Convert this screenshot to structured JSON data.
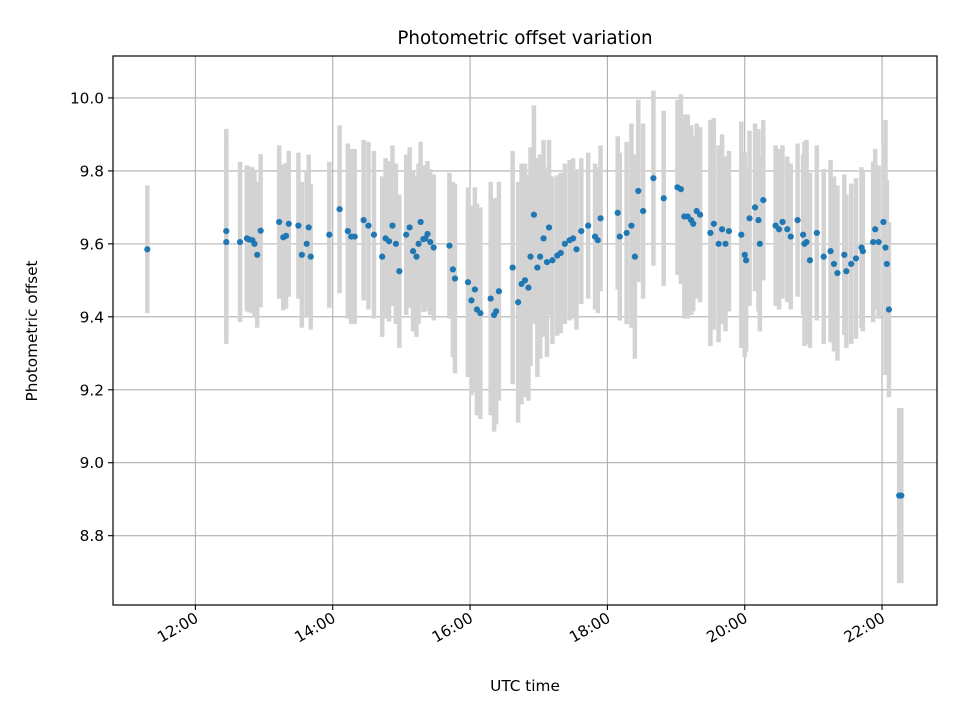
{
  "chart_data": {
    "type": "scatter",
    "title": "Photometric offset variation",
    "xlabel": "UTC time",
    "ylabel": "Photometric offset",
    "x_tick_labels": [
      "12:00",
      "14:00",
      "16:00",
      "18:00",
      "20:00",
      "22:00"
    ],
    "x_tick_hours": [
      12,
      14,
      16,
      18,
      20,
      22
    ],
    "y_tick_labels": [
      "8.8",
      "9.0",
      "9.2",
      "9.4",
      "9.6",
      "9.8",
      "10.0"
    ],
    "y_tick_values": [
      8.8,
      9.0,
      9.2,
      9.4,
      9.6,
      9.8,
      10.0
    ],
    "xlim_hours": [
      10.8,
      22.8
    ],
    "ylim": [
      8.61,
      10.115
    ],
    "grid": true,
    "colors": {
      "point": "#1f77b4",
      "errorbar": "#d3d3d3",
      "grid": "#b0b0b0"
    },
    "series": [
      {
        "x_hours": [
          11.3,
          12.45,
          12.45,
          12.65,
          12.75,
          12.78,
          12.83,
          12.86,
          12.9,
          12.95,
          13.22,
          13.28,
          13.32,
          13.36,
          13.5,
          13.55,
          13.62,
          13.65,
          13.68,
          13.95,
          14.1,
          14.22,
          14.27,
          14.32,
          14.45,
          14.52,
          14.6,
          14.72,
          14.77,
          14.82,
          14.87,
          14.92,
          14.97,
          15.07,
          15.12,
          15.17,
          15.22,
          15.25,
          15.28,
          15.32,
          15.35,
          15.38,
          15.42,
          15.47,
          15.7,
          15.75,
          15.78,
          15.97,
          16.02,
          16.07,
          16.1,
          16.15,
          16.3,
          16.35,
          16.38,
          16.42,
          16.62,
          16.7,
          16.75,
          16.8,
          16.85,
          16.88,
          16.93,
          16.98,
          17.02,
          17.07,
          17.12,
          17.15,
          17.2,
          17.27,
          17.32,
          17.38,
          17.45,
          17.5,
          17.55,
          17.62,
          17.72,
          17.82,
          17.86,
          17.9,
          18.15,
          18.18,
          18.28,
          18.35,
          18.4,
          18.45,
          18.52,
          18.67,
          18.82,
          19.02,
          19.07,
          19.12,
          19.17,
          19.22,
          19.25,
          19.3,
          19.35,
          19.5,
          19.55,
          19.62,
          19.67,
          19.72,
          19.77,
          19.95,
          20.0,
          20.02,
          20.07,
          20.15,
          20.2,
          20.22,
          20.27,
          20.45,
          20.5,
          20.55,
          20.62,
          20.67,
          20.77,
          20.85,
          20.87,
          20.9,
          20.95,
          21.05,
          21.15,
          21.25,
          21.3,
          21.35,
          21.45,
          21.48,
          21.55,
          21.62,
          21.7,
          21.72,
          21.87,
          21.9,
          21.95,
          22.02,
          22.05,
          22.07,
          22.1,
          22.25,
          22.28
        ],
        "y": [
          9.585,
          9.635,
          9.605,
          9.605,
          9.615,
          9.612,
          9.61,
          9.6,
          9.57,
          9.636,
          9.66,
          9.618,
          9.622,
          9.655,
          9.65,
          9.57,
          9.6,
          9.645,
          9.565,
          9.625,
          9.695,
          9.635,
          9.62,
          9.62,
          9.665,
          9.65,
          9.625,
          9.565,
          9.615,
          9.607,
          9.65,
          9.6,
          9.525,
          9.625,
          9.645,
          9.58,
          9.565,
          9.6,
          9.66,
          9.613,
          9.615,
          9.627,
          9.605,
          9.59,
          9.595,
          9.53,
          9.505,
          9.495,
          9.445,
          9.475,
          9.42,
          9.41,
          9.45,
          9.405,
          9.415,
          9.47,
          9.535,
          9.44,
          9.49,
          9.5,
          9.48,
          9.565,
          9.68,
          9.535,
          9.565,
          9.615,
          9.55,
          9.645,
          9.555,
          9.568,
          9.575,
          9.6,
          9.61,
          9.615,
          9.585,
          9.635,
          9.65,
          9.62,
          9.61,
          9.67,
          9.685,
          9.62,
          9.63,
          9.65,
          9.565,
          9.745,
          9.69,
          9.78,
          9.725,
          9.755,
          9.75,
          9.675,
          9.675,
          9.665,
          9.655,
          9.69,
          9.68,
          9.63,
          9.655,
          9.6,
          9.64,
          9.6,
          9.635,
          9.625,
          9.57,
          9.555,
          9.67,
          9.7,
          9.665,
          9.6,
          9.72,
          9.65,
          9.64,
          9.66,
          9.64,
          9.62,
          9.665,
          9.625,
          9.6,
          9.605,
          9.555,
          9.63,
          9.565,
          9.58,
          9.545,
          9.52,
          9.57,
          9.525,
          9.545,
          9.56,
          9.59,
          9.58,
          9.605,
          9.64,
          9.605,
          9.66,
          9.59,
          9.545,
          9.42,
          8.91,
          8.91
        ],
        "err": [
          0.175,
          0.28,
          0.28,
          0.22,
          0.2,
          0.2,
          0.2,
          0.2,
          0.2,
          0.21,
          0.21,
          0.2,
          0.2,
          0.2,
          0.2,
          0.2,
          0.2,
          0.2,
          0.2,
          0.2,
          0.23,
          0.24,
          0.24,
          0.24,
          0.22,
          0.23,
          0.23,
          0.22,
          0.22,
          0.22,
          0.22,
          0.22,
          0.21,
          0.22,
          0.22,
          0.22,
          0.22,
          0.22,
          0.22,
          0.2,
          0.2,
          0.2,
          0.2,
          0.2,
          0.2,
          0.24,
          0.26,
          0.26,
          0.26,
          0.28,
          0.29,
          0.29,
          0.32,
          0.32,
          0.31,
          0.3,
          0.32,
          0.33,
          0.33,
          0.32,
          0.31,
          0.3,
          0.3,
          0.3,
          0.28,
          0.27,
          0.26,
          0.24,
          0.23,
          0.22,
          0.22,
          0.22,
          0.22,
          0.22,
          0.22,
          0.2,
          0.2,
          0.2,
          0.2,
          0.2,
          0.21,
          0.23,
          0.25,
          0.28,
          0.28,
          0.25,
          0.24,
          0.24,
          0.24,
          0.24,
          0.26,
          0.28,
          0.28,
          0.26,
          0.24,
          0.24,
          0.24,
          0.31,
          0.29,
          0.27,
          0.26,
          0.24,
          0.22,
          0.31,
          0.28,
          0.25,
          0.24,
          0.23,
          0.25,
          0.24,
          0.22,
          0.22,
          0.22,
          0.21,
          0.2,
          0.2,
          0.21,
          0.22,
          0.28,
          0.28,
          0.24,
          0.24,
          0.24,
          0.25,
          0.24,
          0.24,
          0.22,
          0.21,
          0.22,
          0.22,
          0.22,
          0.22,
          0.22,
          0.22,
          0.21,
          0.22,
          0.35,
          0.23,
          0.24,
          0.24,
          0.24
        ]
      }
    ]
  }
}
